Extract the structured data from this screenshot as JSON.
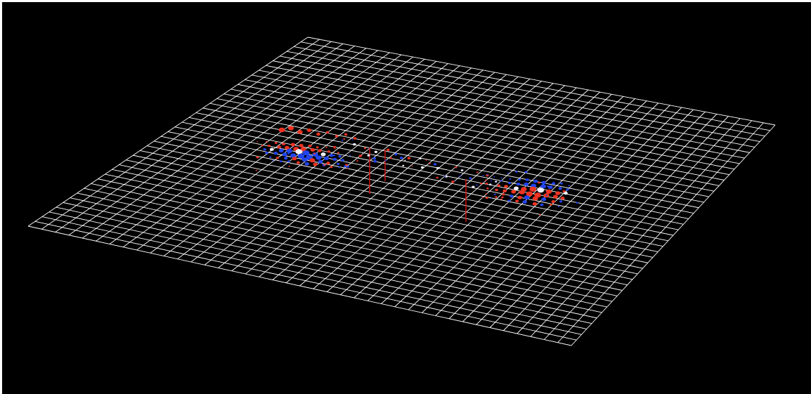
{
  "viewport": {
    "background": "#000000",
    "frame_color": "#ffffff"
  },
  "scene": {
    "plane": {
      "line_color": "#ffffff",
      "divisions": 40
    },
    "particles": {
      "positive_color": "#ee3322",
      "negative_color": "#2244ee",
      "neutral_color": "#f2f2ff"
    },
    "stems": {
      "color": "#dd1111"
    }
  }
}
